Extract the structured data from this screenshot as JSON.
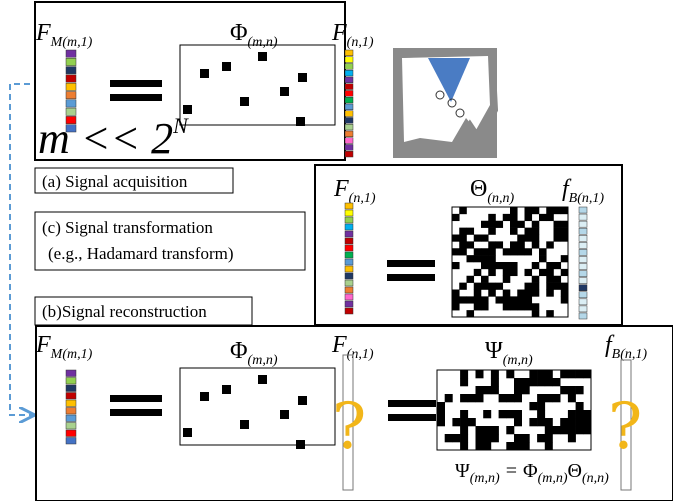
{
  "panel_a": {
    "label": "(a) Signal acquisition",
    "measurement": {
      "symbol": "F",
      "subscript": "M(m,1)"
    },
    "matrix": {
      "symbol": "Φ",
      "subscript": "(m,n)"
    },
    "signal": {
      "symbol": "F",
      "subscript": "(n,1)"
    },
    "condition": {
      "base": "m << 2",
      "exponent": "N"
    }
  },
  "panel_c": {
    "label_line1": "(c) Signal transformation",
    "label_line2": "(e.g., Hadamard transform)",
    "signal": {
      "symbol": "F",
      "subscript": "(n,1)"
    },
    "matrix": {
      "symbol": "Θ",
      "subscript": "(n,n)"
    },
    "coefficients": {
      "symbol": "f",
      "subscript": "B(n,1)"
    }
  },
  "panel_b": {
    "label": "(b)Signal reconstruction",
    "measurement": {
      "symbol": "F",
      "subscript": "M(m,1)"
    },
    "matrix": {
      "symbol": "Φ",
      "subscript": "(m,n)"
    },
    "signal": {
      "symbol": "F",
      "subscript": "(n,1)"
    },
    "reconstruction_matrix": {
      "symbol": "Ψ",
      "subscript": "(m,n)"
    },
    "coefficients": {
      "symbol": "f",
      "subscript": "B(n,1)"
    },
    "unknown": "?",
    "equation": {
      "lhs": {
        "symbol": "Ψ",
        "subscript": "(m,n)"
      },
      "operator": "=",
      "rhs": [
        {
          "symbol": "Φ",
          "subscript": "(m,n)"
        },
        {
          "symbol": "Θ",
          "subscript": "(n,n)"
        }
      ]
    }
  }
}
